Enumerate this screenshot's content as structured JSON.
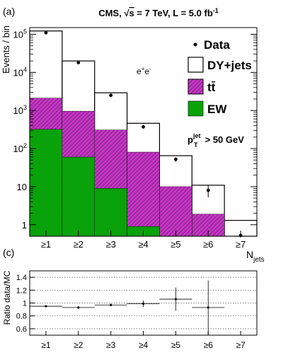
{
  "panels": {
    "top_tag": "(a)",
    "bottom_tag": "(c)"
  },
  "colors": {
    "dy_fill": "#ffffff",
    "ttbar_fill": "#cc33cc",
    "ttbar_hatch": "#222222",
    "ew_fill": "#0aa20a",
    "line": "#000000",
    "grid": "#555555"
  },
  "chart_data": [
    {
      "type": "bar",
      "stacked": true,
      "y_scale": "log",
      "title": "CMS, √s = 7 TeV, L = 5.0 fb⁻¹",
      "title_parts": {
        "lead": "CMS, ",
        "sqrt": "√",
        "s": "s",
        "mid": " = 7 TeV, L = 5.0 fb",
        "exp": "-1"
      },
      "ylabel": "Events / bin",
      "xlabel": "N",
      "xlabel_sub": "jets",
      "categories": [
        "≥1",
        "≥2",
        "≥3",
        "≥4",
        "≥5",
        "≥6",
        "≥7"
      ],
      "ylim": [
        0.5,
        150000
      ],
      "yticks": [
        {
          "value": 1,
          "base": "1",
          "exp": ""
        },
        {
          "value": 10,
          "base": "10",
          "exp": ""
        },
        {
          "value": 100,
          "base": "10",
          "exp": "2"
        },
        {
          "value": 1000,
          "base": "10",
          "exp": "3"
        },
        {
          "value": 10000,
          "base": "10",
          "exp": "4"
        },
        {
          "value": 100000,
          "base": "10",
          "exp": "5"
        }
      ],
      "annotation_channel": {
        "base": "e",
        "sup1": "+",
        "mid": "e",
        "sup2": "-"
      },
      "annotation_cut": {
        "p": "p",
        "sup": "jet",
        "sub": "T",
        "rest": " > 50 GeV"
      },
      "legend": [
        {
          "name": "Data",
          "style": "marker"
        },
        {
          "name": "DY+jets",
          "style": "box"
        },
        {
          "name": "tt̄",
          "style": "hatch"
        },
        {
          "name": "EW",
          "style": "fill"
        }
      ],
      "series": [
        {
          "name": "EW",
          "values": [
            320,
            60,
            9,
            0.9,
            null,
            null,
            null
          ]
        },
        {
          "name": "tt̄",
          "values": [
            1800,
            900,
            300,
            80,
            10,
            1.9,
            null
          ]
        },
        {
          "name": "DY+jets",
          "values": [
            120000,
            19000,
            2600,
            380,
            55,
            9,
            1.3
          ]
        }
      ],
      "data": {
        "name": "Data",
        "values": [
          110000,
          18000,
          2500,
          370,
          52,
          8,
          0.5
        ],
        "errors": [
          300,
          130,
          50,
          20,
          7,
          2.8,
          0
        ]
      }
    },
    {
      "type": "scatter",
      "ylabel": "Ratio data/MC",
      "categories": [
        "≥1",
        "≥2",
        "≥3",
        "≥4",
        "≥5",
        "≥6",
        "≥7"
      ],
      "ylim": [
        0.5,
        1.5
      ],
      "yticks": [
        "0.6",
        "0.8",
        "1",
        "1.2",
        "1.4"
      ],
      "grid": true,
      "values": [
        0.95,
        0.93,
        0.97,
        0.99,
        1.06,
        0.93,
        null
      ],
      "errors": [
        0.01,
        0.01,
        0.02,
        0.05,
        0.18,
        0.42,
        null
      ]
    }
  ]
}
